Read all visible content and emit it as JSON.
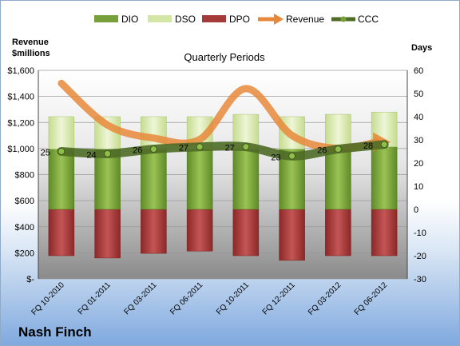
{
  "company": "Nash Finch",
  "chart_data": {
    "type": "bar",
    "title": "Quarterly Periods",
    "ylabel_left": "Revenue $millions",
    "ylabel_right": "Days",
    "left_axis": {
      "min": 0,
      "max": 1600,
      "step": 200,
      "tick_labels": [
        "$-",
        "$200",
        "$400",
        "$600",
        "$800",
        "$1,000",
        "$1,200",
        "$1,400",
        "$1,600"
      ]
    },
    "right_axis": {
      "min": -30,
      "max": 60,
      "step": 10,
      "tick_labels": [
        "-30",
        "-20",
        "-10",
        "0",
        "10",
        "20",
        "30",
        "40",
        "50",
        "60"
      ]
    },
    "categories": [
      "FQ 10-2010",
      "FQ 01-2011",
      "FQ 03-2011",
      "FQ 06-2011",
      "FQ 10-2011",
      "FQ 12-2011",
      "FQ 03-2012",
      "FQ 06-2012"
    ],
    "legend": [
      "DIO",
      "DSO",
      "DPO",
      "Revenue",
      "CCC"
    ],
    "legend_position": "top",
    "grid": true,
    "series": [
      {
        "name": "DIO",
        "axis": "right",
        "color": "#77a03a",
        "values": [
          26,
          26,
          26,
          26,
          26,
          26,
          26,
          27
        ]
      },
      {
        "name": "DSO",
        "axis": "right",
        "color": "#d4e6a5",
        "values": [
          14,
          14,
          14,
          14,
          15,
          14,
          15,
          15
        ]
      },
      {
        "name": "DPO",
        "axis": "right",
        "color": "#a63a3a",
        "values": [
          -20,
          -21,
          -19,
          -18,
          -20,
          -22,
          -20,
          -20
        ]
      },
      {
        "name": "Revenue",
        "axis": "left",
        "color": "#e8883a",
        "values": [
          1500,
          1180,
          1080,
          1070,
          1460,
          1100,
          1000,
          1050
        ]
      },
      {
        "name": "CCC",
        "axis": "right",
        "color": "#4f6b26",
        "values": [
          25,
          24,
          26,
          27,
          27,
          23,
          26,
          28
        ],
        "labels": [
          "25",
          "24",
          "26",
          "27",
          "27",
          "23",
          "26",
          "28"
        ]
      }
    ]
  }
}
